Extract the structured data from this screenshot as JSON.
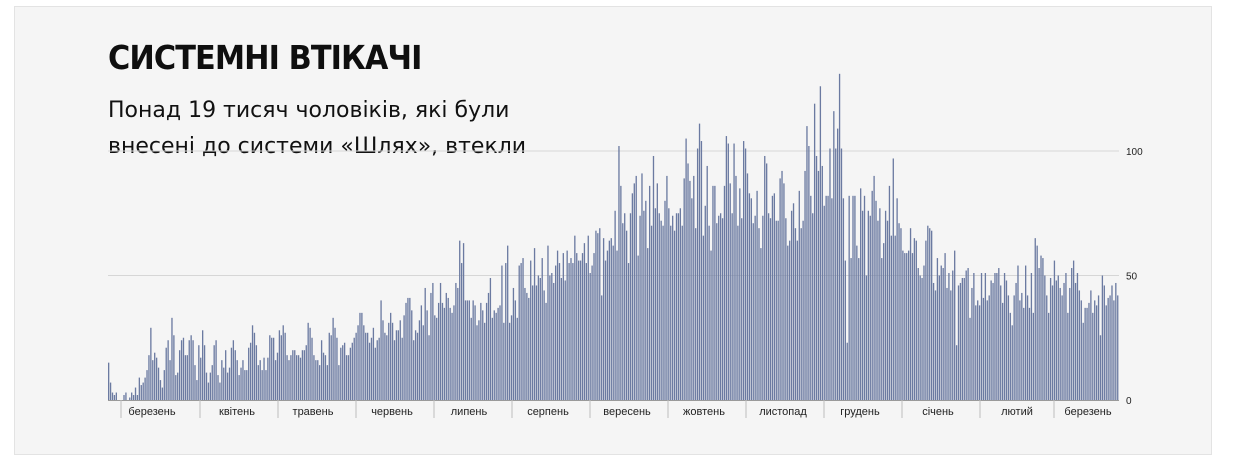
{
  "title": "СИСТЕМНІ ВТІКАЧІ",
  "subtitle": "Понад 19 тисяч чоловіків, які були внесені до системи «Шлях», втекли",
  "chart_data": {
    "type": "bar",
    "title": "СИСТЕМНІ ВТІКАЧІ",
    "subtitle": "Понад 19 тисяч чоловіків, які були внесені до системи «Шлях», втекли",
    "xlabel": "",
    "ylabel": "",
    "ylim": [
      0,
      130
    ],
    "y_ticks": [
      0,
      50,
      100
    ],
    "grid": true,
    "bar_color": "#6b7aa1",
    "month_labels": [
      "березень",
      "квітень",
      "травень",
      "червень",
      "липень",
      "серпень",
      "вересень",
      "жовтень",
      "листопад",
      "грудень",
      "січень",
      "лютий",
      "березень"
    ],
    "values": [
      15,
      7,
      3,
      2,
      3,
      0,
      0,
      0,
      2,
      3,
      0,
      1,
      3,
      2,
      5,
      2,
      9,
      6,
      7,
      9,
      12,
      18,
      29,
      16,
      19,
      17,
      13,
      8,
      5,
      12,
      21,
      24,
      16,
      33,
      26,
      10,
      11,
      20,
      24,
      25,
      18,
      18,
      24,
      26,
      24,
      14,
      8,
      22,
      17,
      28,
      22,
      11,
      7,
      11,
      14,
      22,
      24,
      10,
      7,
      16,
      13,
      20,
      11,
      13,
      21,
      24,
      20,
      16,
      10,
      13,
      16,
      12,
      12,
      21,
      23,
      30,
      27,
      22,
      14,
      16,
      12,
      17,
      12,
      17,
      26,
      25,
      25,
      16,
      19,
      28,
      26,
      30,
      27,
      18,
      16,
      18,
      20,
      20,
      18,
      18,
      17,
      20,
      20,
      22,
      31,
      29,
      25,
      18,
      16,
      16,
      14,
      24,
      19,
      18,
      14,
      27,
      26,
      33,
      29,
      25,
      14,
      21,
      22,
      23,
      18,
      18,
      21,
      23,
      25,
      27,
      30,
      35,
      35,
      30,
      27,
      27,
      23,
      25,
      29,
      21,
      24,
      25,
      40,
      32,
      27,
      26,
      31,
      35,
      31,
      24,
      28,
      28,
      32,
      25,
      34,
      39,
      41,
      41,
      36,
      24,
      28,
      27,
      32,
      38,
      30,
      45,
      36,
      26,
      43,
      47,
      34,
      33,
      39,
      47,
      39,
      37,
      43,
      41,
      37,
      35,
      38,
      47,
      45,
      64,
      55,
      63,
      40,
      40,
      40,
      33,
      40,
      38,
      30,
      32,
      39,
      36,
      31,
      39,
      43,
      49,
      33,
      36,
      35,
      37,
      38,
      54,
      31,
      55,
      62,
      31,
      34,
      45,
      40,
      33,
      54,
      55,
      57,
      45,
      43,
      41,
      56,
      46,
      61,
      46,
      50,
      49,
      57,
      44,
      39,
      62,
      50,
      51,
      47,
      54,
      60,
      55,
      49,
      59,
      48,
      60,
      55,
      57,
      55,
      66,
      59,
      56,
      56,
      59,
      63,
      55,
      66,
      51,
      54,
      59,
      68,
      67,
      69,
      42,
      65,
      56,
      60,
      64,
      65,
      62,
      76,
      60,
      102,
      86,
      71,
      75,
      68,
      55,
      75,
      83,
      87,
      90,
      58,
      74,
      91,
      76,
      80,
      61,
      86,
      70,
      98,
      77,
      87,
      75,
      72,
      70,
      80,
      90,
      77,
      70,
      74,
      68,
      75,
      75,
      77,
      70,
      89,
      105,
      95,
      88,
      81,
      90,
      69,
      101,
      111,
      104,
      66,
      78,
      94,
      70,
      60,
      86,
      86,
      71,
      74,
      75,
      73,
      86,
      106,
      103,
      87,
      75,
      103,
      90,
      70,
      85,
      73,
      104,
      101,
      91,
      83,
      81,
      71,
      74,
      84,
      69,
      61,
      74,
      98,
      95,
      75,
      73,
      82,
      83,
      72,
      72,
      89,
      92,
      87,
      73,
      62,
      64,
      76,
      79,
      69,
      64,
      84,
      69,
      72,
      92,
      110,
      102,
      82,
      75,
      119,
      98,
      92,
      126,
      94,
      78,
      82,
      82,
      101,
      81,
      116,
      101,
      109,
      131,
      101,
      81,
      56,
      23,
      82,
      57,
      82,
      82,
      62,
      57,
      85,
      76,
      82,
      50,
      76,
      74,
      84,
      90,
      80,
      72,
      77,
      57,
      63,
      76,
      72,
      86,
      66,
      97,
      66,
      81,
      71,
      69,
      60,
      59,
      59,
      60,
      69,
      59,
      65,
      64,
      53,
      50,
      49,
      54,
      64,
      70,
      69,
      68,
      47,
      44,
      57,
      50,
      54,
      53,
      59,
      45,
      51,
      44,
      52,
      60,
      22,
      46,
      47,
      49,
      49,
      52,
      53,
      33,
      45,
      51,
      38,
      40,
      38,
      51,
      41,
      51,
      40,
      42,
      48,
      47,
      51,
      51,
      53,
      46,
      39,
      51,
      48,
      42,
      35,
      30,
      42,
      47,
      54,
      40,
      43,
      37,
      54,
      42,
      37,
      51,
      35,
      65,
      62,
      53,
      58,
      57,
      50,
      42,
      35,
      49,
      46,
      56,
      48,
      50,
      45,
      42,
      47,
      51,
      35,
      45,
      53,
      56,
      47,
      51,
      44,
      40,
      31,
      37,
      37,
      39,
      44,
      35,
      40,
      38,
      42,
      26,
      50,
      46,
      38,
      41,
      42,
      46,
      40,
      47,
      42
    ]
  }
}
